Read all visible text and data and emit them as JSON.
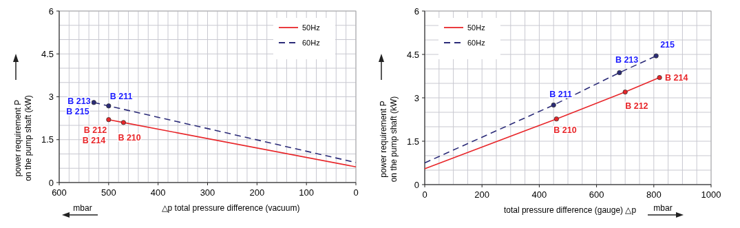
{
  "chart_data": [
    {
      "type": "line",
      "xlabel": "△p total pressure difference (vacuum)",
      "ylabel": "power requirement P\non the pump shaft (kW)",
      "xlim": [
        600,
        0
      ],
      "ylim": [
        0,
        6
      ],
      "xticks": [
        600,
        {
          "value": 580,
          "label": null
        },
        {
          "value": 560,
          "label": null
        },
        {
          "value": 540,
          "label": null
        },
        {
          "value": 520,
          "label": null
        },
        500,
        {
          "value": 480,
          "label": null
        },
        {
          "value": 460,
          "label": null
        },
        {
          "value": 440,
          "label": null
        },
        {
          "value": 420,
          "label": null
        },
        400,
        {
          "value": 380,
          "label": null
        },
        {
          "value": 360,
          "label": null
        },
        {
          "value": 340,
          "label": null
        },
        {
          "value": 320,
          "label": null
        },
        300,
        {
          "value": 280,
          "label": null
        },
        {
          "value": 260,
          "label": null
        },
        {
          "value": 240,
          "label": null
        },
        {
          "value": 220,
          "label": null
        },
        200,
        {
          "value": 180,
          "label": null
        },
        {
          "value": 160,
          "label": null
        },
        {
          "value": 140,
          "label": null
        },
        {
          "value": 120,
          "label": null
        },
        100,
        {
          "value": 80,
          "label": null
        },
        {
          "value": 60,
          "label": null
        },
        {
          "value": 40,
          "label": null
        },
        {
          "value": 20,
          "label": null
        },
        0
      ],
      "yticks": [
        0,
        {
          "value": 0.5,
          "label": null
        },
        {
          "value": 1,
          "label": null
        },
        1.5,
        {
          "value": 2,
          "label": null
        },
        {
          "value": 2.5,
          "label": null
        },
        3,
        {
          "value": 3.5,
          "label": null
        },
        {
          "value": 4,
          "label": null
        },
        4.5,
        {
          "value": 5,
          "label": null
        },
        {
          "value": 5.5,
          "label": null
        },
        6
      ],
      "grid": true,
      "legend": "top right",
      "series": [
        {
          "name": "50Hz",
          "color": "#e8262a",
          "line_style": "solid",
          "x": [
            500,
            470,
            0
          ],
          "values": [
            2.2,
            2.1,
            0.55
          ]
        },
        {
          "name": "60Hz",
          "color": "#2b2b78",
          "line_style": "dashed",
          "x": [
            530,
            500,
            0
          ],
          "values": [
            2.8,
            2.68,
            0.7
          ]
        },
        {
          "type": "scatter",
          "color": "#e8262a",
          "marker": "circle",
          "x": [
            500,
            470
          ],
          "values": [
            2.2,
            2.1
          ]
        },
        {
          "type": "scatter",
          "color": "#2b2b78",
          "marker": "circle",
          "x": [
            530,
            500
          ],
          "values": [
            2.8,
            2.68
          ]
        }
      ],
      "annotations": [
        {
          "text": "B 213",
          "x": 530,
          "y": 2.8
        },
        {
          "text": "B 215",
          "x": 530,
          "y": 2.8
        },
        {
          "text": "B 211",
          "x": 500,
          "y": 2.68
        },
        {
          "text": "B 212",
          "x": 500,
          "y": 2.2
        },
        {
          "text": "B 214",
          "x": 500,
          "y": 2.2
        },
        {
          "text": "B 210",
          "x": 470,
          "y": 2.1
        },
        "mbar"
      ]
    },
    {
      "type": "line",
      "xlabel": "total pressure difference (gauge) △p",
      "ylabel": "power requirement P\non the pump shaft (kW)",
      "xlim": [
        0,
        1000
      ],
      "ylim": [
        0,
        6
      ],
      "xticks": [
        0,
        {
          "value": 50,
          "label": null
        },
        {
          "value": 100,
          "label": null
        },
        {
          "value": 150,
          "label": null
        },
        200,
        {
          "value": 250,
          "label": null
        },
        {
          "value": 300,
          "label": null
        },
        {
          "value": 350,
          "label": null
        },
        400,
        {
          "value": 450,
          "label": null
        },
        {
          "value": 500,
          "label": null
        },
        {
          "value": 550,
          "label": null
        },
        600,
        {
          "value": 650,
          "label": null
        },
        {
          "value": 700,
          "label": null
        },
        {
          "value": 750,
          "label": null
        },
        800,
        {
          "value": 850,
          "label": null
        },
        {
          "value": 900,
          "label": null
        },
        {
          "value": 950,
          "label": null
        },
        1000
      ],
      "yticks": [
        0,
        {
          "value": 0.5,
          "label": null
        },
        {
          "value": 1,
          "label": null
        },
        1.5,
        {
          "value": 2,
          "label": null
        },
        {
          "value": 2.5,
          "label": null
        },
        3,
        {
          "value": 3.5,
          "label": null
        },
        {
          "value": 4,
          "label": null
        },
        4.5,
        {
          "value": 5,
          "label": null
        },
        {
          "value": 5.5,
          "label": null
        },
        6
      ],
      "grid": true,
      "legend": "top left",
      "series": [
        {
          "name": "50Hz",
          "color": "#e8262a",
          "line_style": "solid",
          "x": [
            0,
            460,
            700,
            820
          ],
          "values": [
            0.55,
            2.27,
            3.2,
            3.7
          ]
        },
        {
          "name": "60Hz",
          "color": "#2b2b78",
          "line_style": "dashed",
          "x": [
            0,
            450,
            680,
            808
          ],
          "values": [
            0.75,
            2.75,
            3.87,
            4.45
          ]
        },
        {
          "type": "scatter",
          "color": "#e8262a",
          "marker": "circle",
          "x": [
            460,
            700,
            820
          ],
          "values": [
            2.27,
            3.2,
            3.7
          ]
        },
        {
          "type": "scatter",
          "color": "#2b2b78",
          "marker": "circle",
          "x": [
            450,
            680,
            808
          ],
          "values": [
            2.75,
            3.87,
            4.45
          ]
        }
      ],
      "annotations": [
        {
          "text": "B 211",
          "x": 450,
          "y": 2.75
        },
        {
          "text": "B 213",
          "x": 680,
          "y": 3.87
        },
        {
          "text": "215",
          "x": 808,
          "y": 4.45
        },
        {
          "text": "B 210",
          "x": 460,
          "y": 2.27
        },
        {
          "text": "B 212",
          "x": 700,
          "y": 3.2
        },
        {
          "text": "B 214",
          "x": 820,
          "y": 3.7
        },
        "mbar"
      ]
    }
  ]
}
